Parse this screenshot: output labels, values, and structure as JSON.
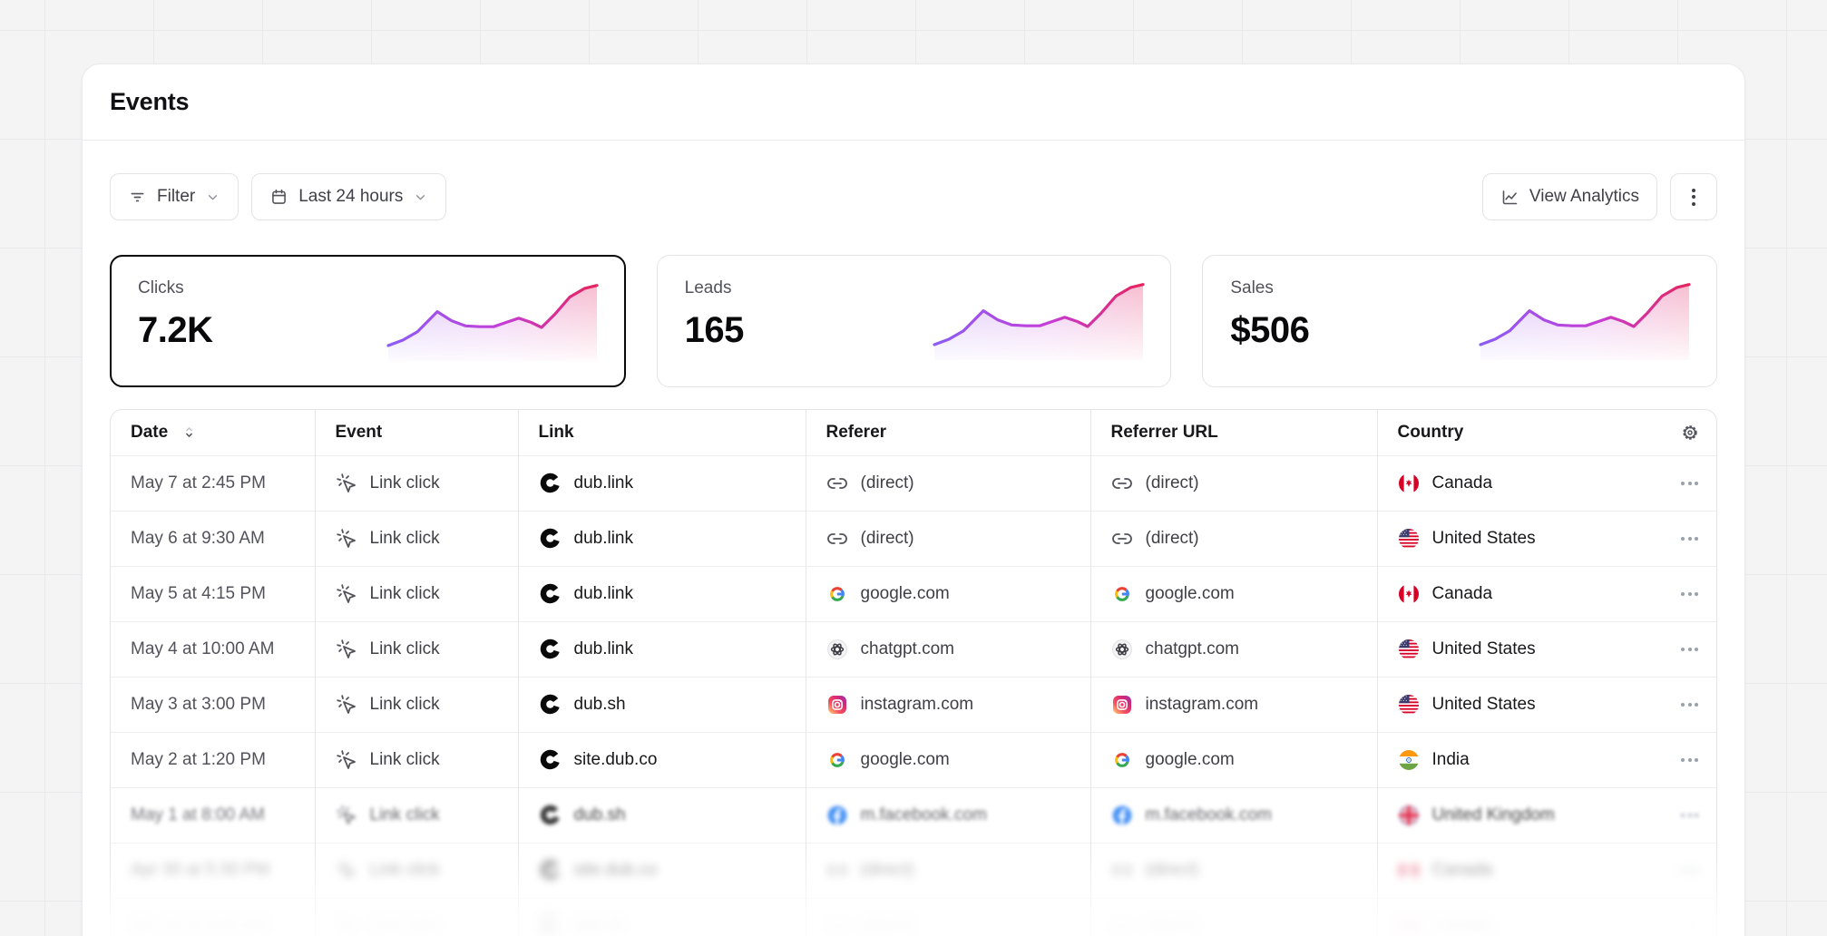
{
  "panel": {
    "title": "Events"
  },
  "toolbar": {
    "filter": "Filter",
    "date_range": "Last 24 hours",
    "view_analytics": "View Analytics"
  },
  "stats": [
    {
      "label": "Clicks",
      "value": "7.2K",
      "selected": true
    },
    {
      "label": "Leads",
      "value": "165",
      "selected": false
    },
    {
      "label": "Sales",
      "value": "$506",
      "selected": false
    }
  ],
  "sparkline": {
    "points": [
      [
        0,
        0.8
      ],
      [
        0.07,
        0.73
      ],
      [
        0.14,
        0.62
      ],
      [
        0.235,
        0.36
      ],
      [
        0.305,
        0.48
      ],
      [
        0.37,
        0.545
      ],
      [
        0.44,
        0.555
      ],
      [
        0.505,
        0.555
      ],
      [
        0.565,
        0.5
      ],
      [
        0.625,
        0.445
      ],
      [
        0.685,
        0.5
      ],
      [
        0.735,
        0.565
      ],
      [
        0.8,
        0.39
      ],
      [
        0.87,
        0.17
      ],
      [
        0.94,
        0.06
      ],
      [
        1,
        0.02
      ]
    ],
    "colors": {
      "start": "#8b5cf6",
      "mid": "#c43ed6",
      "end": "#e5245e"
    }
  },
  "table": {
    "headers": {
      "date": "Date",
      "event": "Event",
      "link": "Link",
      "referer": "Referer",
      "referrer_url": "Referrer URL",
      "country": "Country"
    },
    "rows": [
      {
        "date": "May 7 at 2:45 PM",
        "event": "Link click",
        "link": "dub.link",
        "referer": "(direct)",
        "referer_icon": "link",
        "referrer_url": "(direct)",
        "country": "Canada",
        "flag": "flag-ca",
        "fade": 0
      },
      {
        "date": "May 6 at 9:30 AM",
        "event": "Link click",
        "link": "dub.link",
        "referer": "(direct)",
        "referer_icon": "link",
        "referrer_url": "(direct)",
        "country": "United States",
        "flag": "flag-us",
        "fade": 0
      },
      {
        "date": "May 5 at 4:15 PM",
        "event": "Link click",
        "link": "dub.link",
        "referer": "google.com",
        "referer_icon": "google",
        "referrer_url": "google.com",
        "country": "Canada",
        "flag": "flag-ca",
        "fade": 0
      },
      {
        "date": "May 4 at 10:00 AM",
        "event": "Link click",
        "link": "dub.link",
        "referer": "chatgpt.com",
        "referer_icon": "chatgpt",
        "referrer_url": "chatgpt.com",
        "country": "United States",
        "flag": "flag-us",
        "fade": 0
      },
      {
        "date": "May 3 at 3:00 PM",
        "event": "Link click",
        "link": "dub.sh",
        "referer": "instagram.com",
        "referer_icon": "instagram",
        "referrer_url": "instagram.com",
        "country": "United States",
        "flag": "flag-us",
        "fade": 0
      },
      {
        "date": "May 2 at 1:20 PM",
        "event": "Link click",
        "link": "site.dub.co",
        "referer": "google.com",
        "referer_icon": "google",
        "referrer_url": "google.com",
        "country": "India",
        "flag": "flag-in",
        "fade": 0
      },
      {
        "date": "May 1 at 8:00 AM",
        "event": "Link click",
        "link": "dub.sh",
        "referer": "m.facebook.com",
        "referer_icon": "facebook",
        "referrer_url": "m.facebook.com",
        "country": "United Kingdom",
        "flag": "flag-gb",
        "fade": 1
      },
      {
        "date": "Apr 30 at 5:30 PM",
        "event": "Link click",
        "link": "site.dub.co",
        "referer": "(direct)",
        "referer_icon": "link",
        "referrer_url": "(direct)",
        "country": "Canada",
        "flag": "flag-ca",
        "fade": 2
      },
      {
        "date": "Apr 29 at 9:00 AM",
        "event": "Link click",
        "link": "dub.sh",
        "referer": "(direct)",
        "referer_icon": "link",
        "referrer_url": "(direct)",
        "country": "Canada",
        "flag": "flag-ca",
        "fade": 3
      }
    ]
  }
}
